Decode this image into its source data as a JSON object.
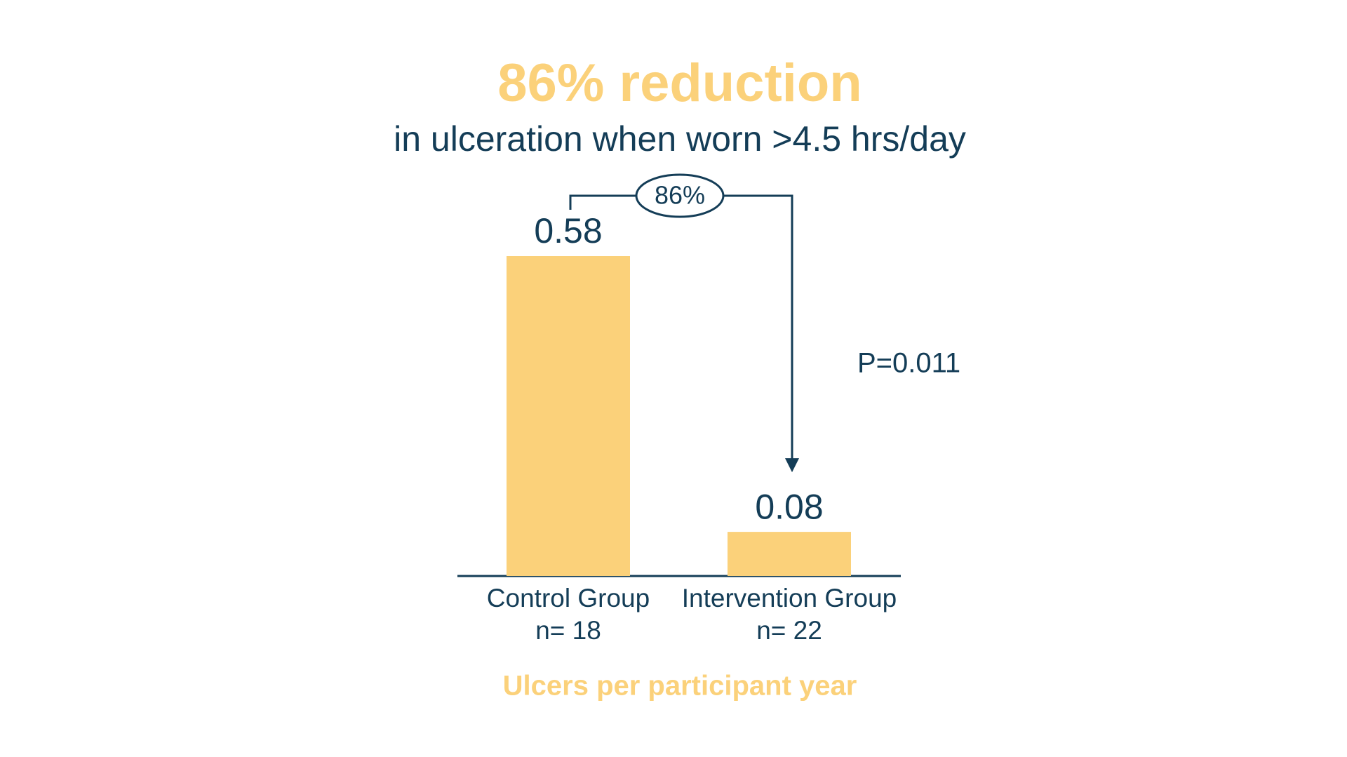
{
  "chart_data": {
    "type": "bar",
    "title": "86% reduction",
    "subtitle": "in ulceration when worn >4.5 hrs/day",
    "categories": [
      "Control Group",
      "Intervention Group"
    ],
    "sample_sizes": [
      "n= 18",
      "n= 22"
    ],
    "values": [
      0.58,
      0.08
    ],
    "color": "#fbd17a",
    "annotations": {
      "reduction": "86%",
      "p_value": "P=0.011"
    },
    "y_axis_label": "Ulcers per participant year"
  }
}
